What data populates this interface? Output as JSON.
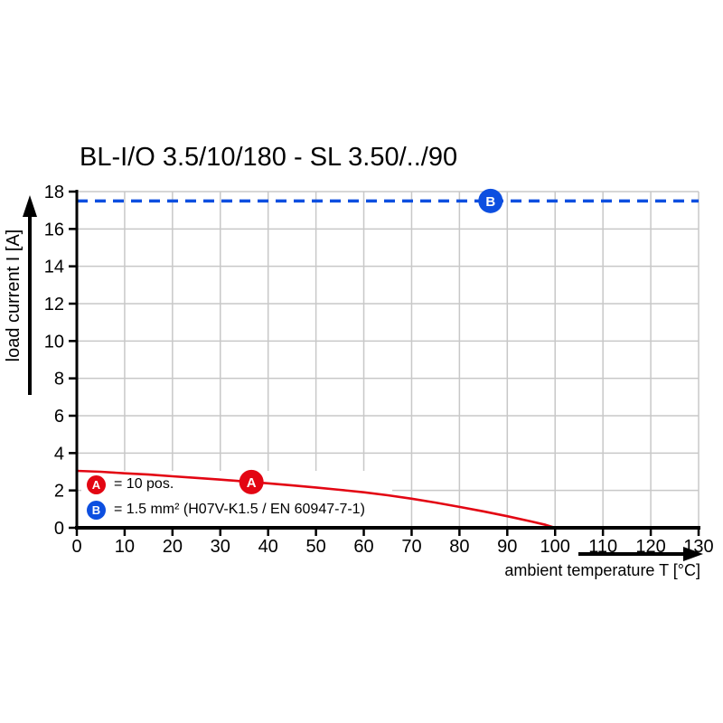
{
  "title": "BL-I/O 3.5/10/180 - SL 3.50/../90",
  "y_axis": {
    "label": "load current I [A]"
  },
  "x_axis": {
    "label": "ambient temperature T [°C]"
  },
  "colors": {
    "curve_red": "#e30613",
    "dashed_blue": "#0d4fe0",
    "grid_gray": "#c8c8c8",
    "axis_black": "#000000"
  },
  "legend": [
    {
      "marker": "A",
      "text": "= 10 pos.",
      "color": "#e30613"
    },
    {
      "marker": "B",
      "text": "= 1.5 mm² (H07V-K1.5 / EN 60947-7-1)",
      "color": "#0d4fe0"
    }
  ],
  "chart_data": {
    "type": "line",
    "title": "BL-I/O 3.5/10/180 - SL 3.50/../90",
    "xlabel": "ambient temperature T [°C]",
    "ylabel": "load current I [A]",
    "xlim": [
      0,
      130
    ],
    "ylim": [
      0,
      18
    ],
    "x_ticks": [
      0,
      10,
      20,
      30,
      40,
      50,
      60,
      70,
      80,
      90,
      100,
      110,
      120,
      130
    ],
    "y_ticks": [
      0,
      2,
      4,
      6,
      8,
      10,
      12,
      14,
      16,
      18
    ],
    "grid": true,
    "legend_position": "inside-bottom-left",
    "series": [
      {
        "name": "A",
        "label": "= 10 pos.",
        "color": "#e30613",
        "style": "solid",
        "points": [
          [
            0,
            3.05
          ],
          [
            5,
            3.0
          ],
          [
            10,
            2.92
          ],
          [
            15,
            2.85
          ],
          [
            20,
            2.76
          ],
          [
            25,
            2.67
          ],
          [
            30,
            2.58
          ],
          [
            35,
            2.48
          ],
          [
            40,
            2.38
          ],
          [
            45,
            2.27
          ],
          [
            50,
            2.16
          ],
          [
            55,
            2.03
          ],
          [
            60,
            1.9
          ],
          [
            65,
            1.74
          ],
          [
            70,
            1.56
          ],
          [
            75,
            1.35
          ],
          [
            80,
            1.12
          ],
          [
            85,
            0.88
          ],
          [
            90,
            0.62
          ],
          [
            95,
            0.34
          ],
          [
            98,
            0.16
          ],
          [
            100,
            0
          ]
        ],
        "marker": {
          "label": "A",
          "x": 36.5,
          "y": 2.45
        }
      },
      {
        "name": "B",
        "label": "= 1.5 mm² (H07V-K1.5 / EN 60947-7-1)",
        "color": "#0d4fe0",
        "style": "dashed",
        "value": 17.5,
        "x_range": [
          0,
          130
        ],
        "marker": {
          "label": "B",
          "x": 86.5,
          "y": 17.5
        }
      }
    ]
  }
}
